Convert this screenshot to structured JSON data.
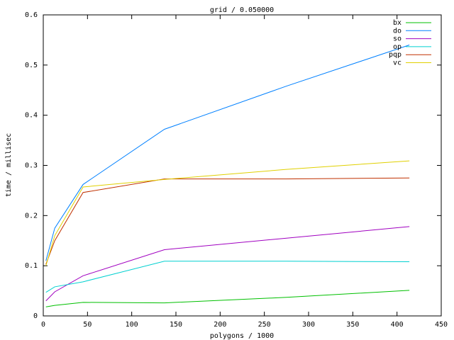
{
  "chart_data": {
    "type": "line",
    "title": "grid / 0.050000",
    "x_label": "polygons / 1000",
    "y_label": "time / millisec",
    "x": [
      3,
      13,
      45,
      137,
      275,
      414
    ],
    "series": [
      {
        "name": "bx",
        "color": "#00c000",
        "values": [
          0.018,
          0.021,
          0.027,
          0.026,
          0.037,
          0.051
        ]
      },
      {
        "name": "do",
        "color": "#0080ff",
        "values": [
          0.11,
          0.175,
          0.262,
          0.372,
          0.458,
          0.54
        ]
      },
      {
        "name": "so",
        "color": "#a000c0",
        "values": [
          0.03,
          0.048,
          0.08,
          0.132,
          0.155,
          0.178
        ]
      },
      {
        "name": "op",
        "color": "#00d0d0",
        "values": [
          0.047,
          0.058,
          0.068,
          0.109,
          0.109,
          0.108
        ]
      },
      {
        "name": "pqp",
        "color": "#c03000",
        "values": [
          0.103,
          0.15,
          0.246,
          0.273,
          0.273,
          0.275
        ]
      },
      {
        "name": "vc",
        "color": "#e0d000",
        "values": [
          0.1,
          0.16,
          0.257,
          0.272,
          0.292,
          0.309
        ]
      }
    ],
    "xlim": [
      0,
      450
    ],
    "xticks": [
      0,
      50,
      100,
      150,
      200,
      250,
      300,
      350,
      400,
      450
    ],
    "ylim": [
      0,
      0.6
    ],
    "yticks": [
      0,
      0.1,
      0.2,
      0.3,
      0.4,
      0.5,
      0.6
    ],
    "legend": "top-right"
  }
}
